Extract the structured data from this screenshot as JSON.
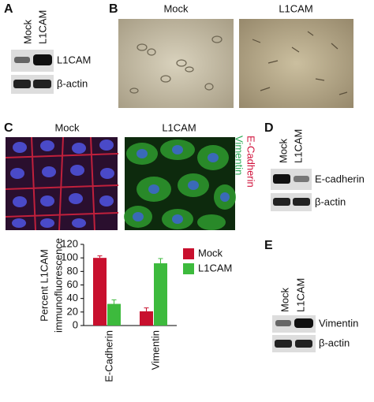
{
  "panels": {
    "a": {
      "label": "A",
      "columns": [
        "Mock",
        "L1CAM"
      ],
      "rows": [
        "L1CAM",
        "β-actin"
      ]
    },
    "b": {
      "label": "B",
      "titles": [
        "Mock",
        "L1CAM"
      ]
    },
    "c": {
      "label": "C",
      "titles": [
        "Mock",
        "L1CAM"
      ],
      "stains": [
        "Vimentin",
        "E-Cadherin"
      ]
    },
    "d": {
      "label": "D",
      "columns": [
        "Mock",
        "L1CAM"
      ],
      "rows": [
        "E-cadherin",
        "β-actin"
      ]
    },
    "e": {
      "label": "E",
      "columns": [
        "Mock",
        "L1CAM"
      ],
      "rows": [
        "Vimentin",
        "β-actin"
      ]
    }
  },
  "chart_data": {
    "type": "bar",
    "y_label": [
      "Percent L1CAM",
      "immunofluorescence"
    ],
    "categories": [
      "E-Cadherin",
      "Vimentin"
    ],
    "series": [
      {
        "name": "Mock",
        "color": "#c8102e",
        "values": [
          100,
          21
        ],
        "errors": [
          3,
          5
        ]
      },
      {
        "name": "L1CAM",
        "color": "#3dba3d",
        "values": [
          32,
          92
        ],
        "errors": [
          6,
          7
        ]
      }
    ],
    "ylim": [
      0,
      120
    ],
    "yticks": [
      0,
      20,
      40,
      60,
      80,
      100,
      120
    ]
  }
}
